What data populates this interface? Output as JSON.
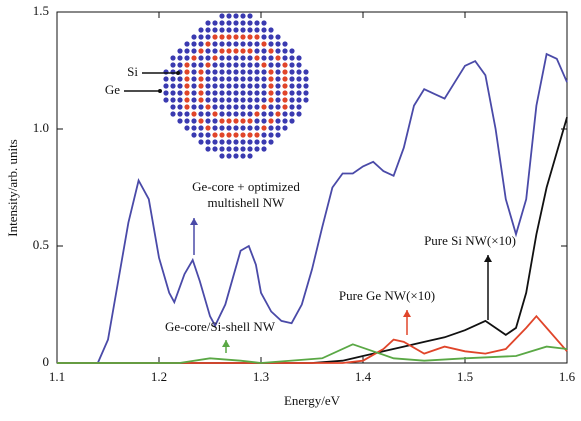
{
  "chart_data": {
    "type": "line",
    "xlabel": "Energy/eV",
    "ylabel": "Intensity/arb. units",
    "xlim": [
      1.1,
      1.6
    ],
    "ylim": [
      0,
      1.5
    ],
    "xticks": [
      1.1,
      1.2,
      1.3,
      1.4,
      1.5,
      1.6
    ],
    "yticks": [
      0,
      0.5,
      {
        "value": 1,
        "label": "1.0"
      },
      1.5
    ],
    "series": [
      {
        "color": "#4a4aa8",
        "x": [
          1.14,
          1.15,
          1.16,
          1.17,
          1.18,
          1.19,
          1.2,
          1.21,
          1.215,
          1.225,
          1.233,
          1.24,
          1.25,
          1.255,
          1.265,
          1.28,
          1.288,
          1.295,
          1.3,
          1.31,
          1.32,
          1.33,
          1.34,
          1.35,
          1.36,
          1.37,
          1.38,
          1.39,
          1.4,
          1.41,
          1.42,
          1.43,
          1.44,
          1.45,
          1.46,
          1.47,
          1.48,
          1.49,
          1.5,
          1.51,
          1.52,
          1.53,
          1.54,
          1.55,
          1.56,
          1.57,
          1.58,
          1.59,
          1.6
        ],
        "values": [
          0,
          0.1,
          0.35,
          0.6,
          0.78,
          0.7,
          0.45,
          0.3,
          0.26,
          0.38,
          0.44,
          0.35,
          0.2,
          0.16,
          0.25,
          0.48,
          0.5,
          0.42,
          0.3,
          0.22,
          0.18,
          0.17,
          0.25,
          0.4,
          0.58,
          0.75,
          0.81,
          0.81,
          0.84,
          0.86,
          0.82,
          0.8,
          0.92,
          1.1,
          1.17,
          1.15,
          1.13,
          1.2,
          1.27,
          1.29,
          1.23,
          1.0,
          0.7,
          0.55,
          0.7,
          1.1,
          1.32,
          1.3,
          1.2
        ]
      },
      {
        "color": "#111111",
        "x": [
          1.1,
          1.35,
          1.38,
          1.4,
          1.42,
          1.44,
          1.46,
          1.48,
          1.5,
          1.52,
          1.53,
          1.54,
          1.55,
          1.56,
          1.57,
          1.58,
          1.59,
          1.6
        ],
        "values": [
          0,
          0,
          0.01,
          0.03,
          0.05,
          0.07,
          0.09,
          0.11,
          0.14,
          0.18,
          0.15,
          0.12,
          0.15,
          0.3,
          0.55,
          0.75,
          0.9,
          1.05
        ]
      },
      {
        "color": "#e0452a",
        "x": [
          1.1,
          1.38,
          1.4,
          1.42,
          1.43,
          1.44,
          1.46,
          1.48,
          1.5,
          1.52,
          1.54,
          1.56,
          1.57,
          1.58,
          1.6
        ],
        "values": [
          0,
          0,
          0.01,
          0.06,
          0.1,
          0.09,
          0.04,
          0.07,
          0.05,
          0.04,
          0.06,
          0.15,
          0.2,
          0.15,
          0.05
        ]
      },
      {
        "color": "#5aa845",
        "x": [
          1.1,
          1.22,
          1.25,
          1.28,
          1.3,
          1.36,
          1.39,
          1.41,
          1.43,
          1.46,
          1.5,
          1.55,
          1.58,
          1.6
        ],
        "values": [
          0,
          0,
          0.02,
          0.01,
          0,
          0.02,
          0.08,
          0.05,
          0.02,
          0.01,
          0.02,
          0.03,
          0.07,
          0.06
        ]
      }
    ],
    "annotations": [
      {
        "text": [
          "Ge-core + optimized",
          "multishell NW"
        ]
      },
      {
        "text": [
          "Pure Si NW(×10)"
        ]
      },
      {
        "text": [
          "Pure Ge NW(×10)"
        ]
      },
      {
        "text": [
          "Ge-core/Si-shell NW"
        ]
      },
      {
        "text": [
          "Si"
        ]
      },
      {
        "text": [
          "Ge"
        ]
      }
    ]
  }
}
